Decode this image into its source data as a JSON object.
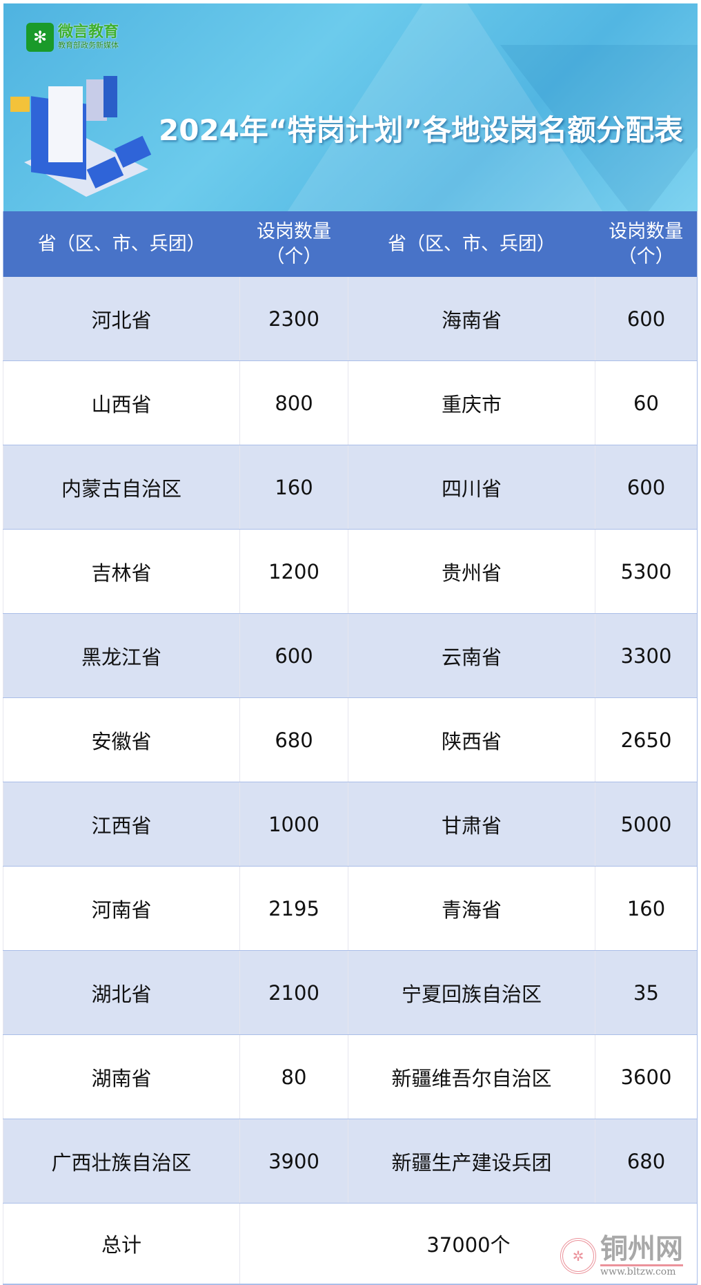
{
  "banner": {
    "logo_name": "微言教育",
    "logo_tagline": "教育部政务新媒体",
    "title": "2024年“特岗计划”各地设岗名额分配表"
  },
  "table": {
    "headers": [
      "省（区、市、兵团）",
      "设岗数量（个）",
      "省（区、市、兵团）",
      "设岗数量（个）"
    ],
    "header_lines": {
      "region": "省（区、市、兵团）",
      "count_l1": "设岗数量",
      "count_l2": "（个）"
    },
    "rows": [
      [
        "河北省",
        "2300",
        "海南省",
        "600"
      ],
      [
        "山西省",
        "800",
        "重庆市",
        "60"
      ],
      [
        "内蒙古自治区",
        "160",
        "四川省",
        "600"
      ],
      [
        "吉林省",
        "1200",
        "贵州省",
        "5300"
      ],
      [
        "黑龙江省",
        "600",
        "云南省",
        "3300"
      ],
      [
        "安徽省",
        "680",
        "陕西省",
        "2650"
      ],
      [
        "江西省",
        "1000",
        "甘肃省",
        "5000"
      ],
      [
        "河南省",
        "2195",
        "青海省",
        "160"
      ],
      [
        "湖北省",
        "2100",
        "宁夏回族自治区",
        "35"
      ],
      [
        "湖南省",
        "80",
        "新疆维吾尔自治区",
        "3600"
      ],
      [
        "广西壮族自治区",
        "3900",
        "新疆生产建设兵团",
        "680"
      ]
    ],
    "total_label": "总计",
    "total_value": "37000个"
  },
  "watermark": {
    "name": "铜州网",
    "url": "www.bltzw.com"
  },
  "colors": {
    "header_bg": "#4873c8",
    "alt_row_bg": "#d9e1f3",
    "border": "#a9bde8"
  }
}
